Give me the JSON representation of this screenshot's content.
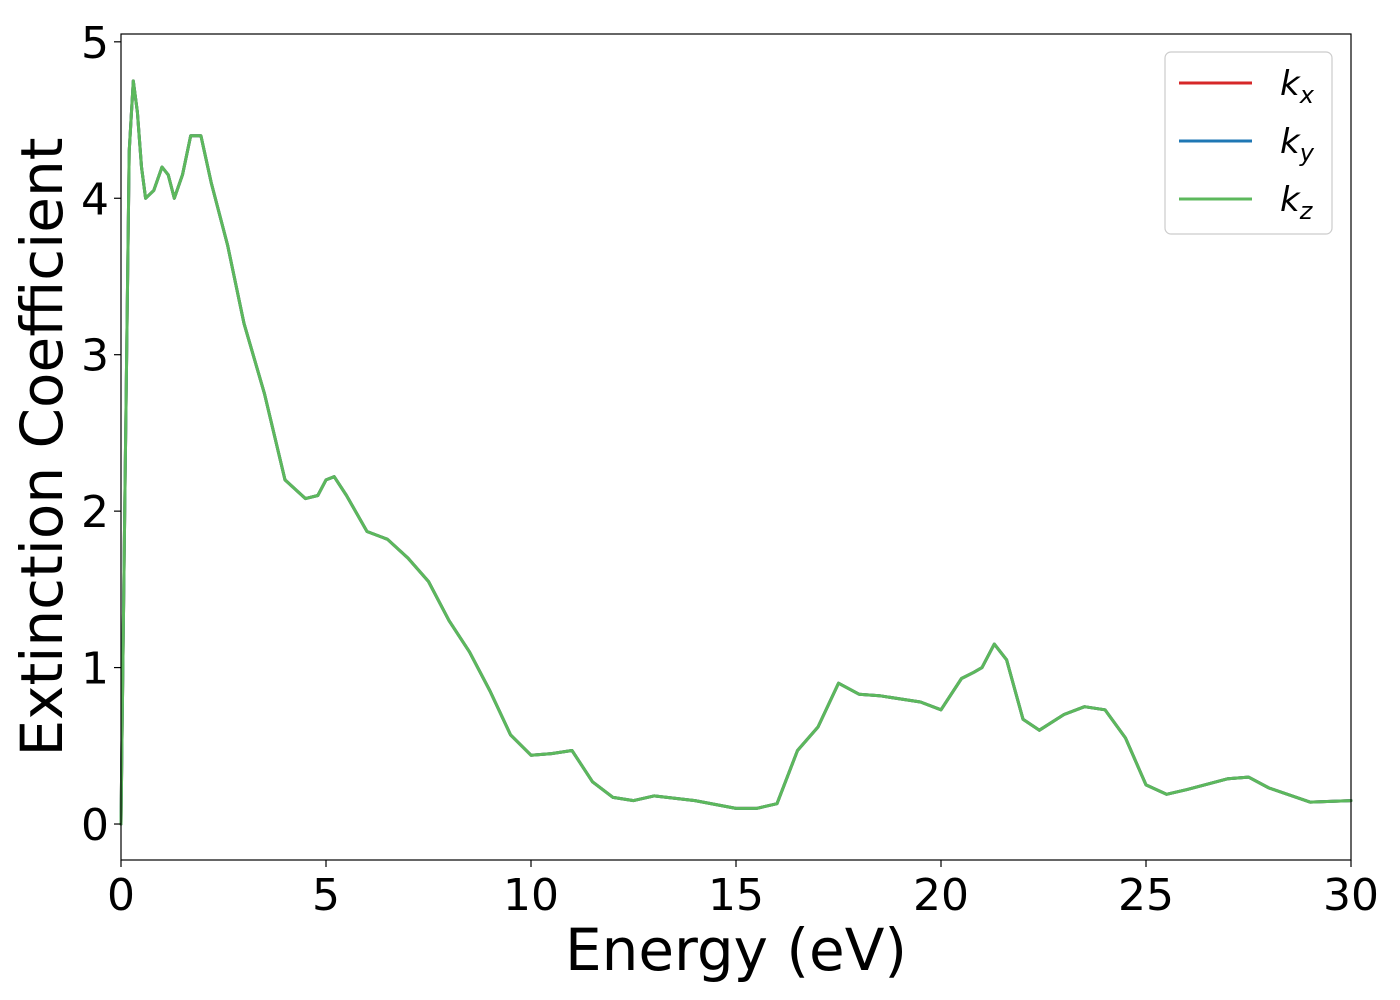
{
  "chart_data": {
    "type": "line",
    "xlabel": "Energy (eV)",
    "ylabel": "Extinction Coefficient",
    "xlim": [
      0,
      30
    ],
    "ylim": [
      -0.23,
      5.05
    ],
    "xticks": [
      0,
      5,
      10,
      15,
      20,
      25,
      30
    ],
    "yticks": [
      0,
      1,
      2,
      3,
      4,
      5
    ],
    "grid": false,
    "legend_position": "top-right",
    "series": [
      {
        "name": "k",
        "subscript": "x",
        "color": "#d62728"
      },
      {
        "name": "k",
        "subscript": "y",
        "color": "#1f77b4"
      },
      {
        "name": "k",
        "subscript": "z",
        "color": "#5cb85c"
      }
    ],
    "x": [
      0,
      0.1,
      0.2,
      0.3,
      0.4,
      0.5,
      0.6,
      0.8,
      1.0,
      1.15,
      1.3,
      1.5,
      1.7,
      1.95,
      2.2,
      2.6,
      3.0,
      3.5,
      4.0,
      4.5,
      4.8,
      5.0,
      5.2,
      5.5,
      6.0,
      6.5,
      7.0,
      7.5,
      8.0,
      8.5,
      9.0,
      9.5,
      10.0,
      10.5,
      11.0,
      11.5,
      12.0,
      12.5,
      13.0,
      14.0,
      15.0,
      15.5,
      16.0,
      16.5,
      17.0,
      17.5,
      18.0,
      18.5,
      19.0,
      19.5,
      20.0,
      20.5,
      20.8,
      21.0,
      21.3,
      21.6,
      22.0,
      22.4,
      23.0,
      23.5,
      24.0,
      24.5,
      25.0,
      25.5,
      26.0,
      27.0,
      27.5,
      28.0,
      29.0,
      30.0
    ],
    "values_kx": [
      0.0,
      2.2,
      4.3,
      4.75,
      4.55,
      4.2,
      4.0,
      4.05,
      4.2,
      4.15,
      4.0,
      4.15,
      4.4,
      4.4,
      4.1,
      3.7,
      3.2,
      2.75,
      2.2,
      2.08,
      2.1,
      2.2,
      2.22,
      2.1,
      1.87,
      1.82,
      1.7,
      1.55,
      1.3,
      1.1,
      0.85,
      0.57,
      0.44,
      0.45,
      0.47,
      0.27,
      0.17,
      0.15,
      0.18,
      0.15,
      0.1,
      0.1,
      0.13,
      0.47,
      0.62,
      0.9,
      0.83,
      0.82,
      0.8,
      0.78,
      0.73,
      0.93,
      0.97,
      1.0,
      1.15,
      1.05,
      0.67,
      0.6,
      0.7,
      0.75,
      0.73,
      0.55,
      0.25,
      0.19,
      0.22,
      0.29,
      0.3,
      0.23,
      0.14,
      0.15
    ]
  }
}
